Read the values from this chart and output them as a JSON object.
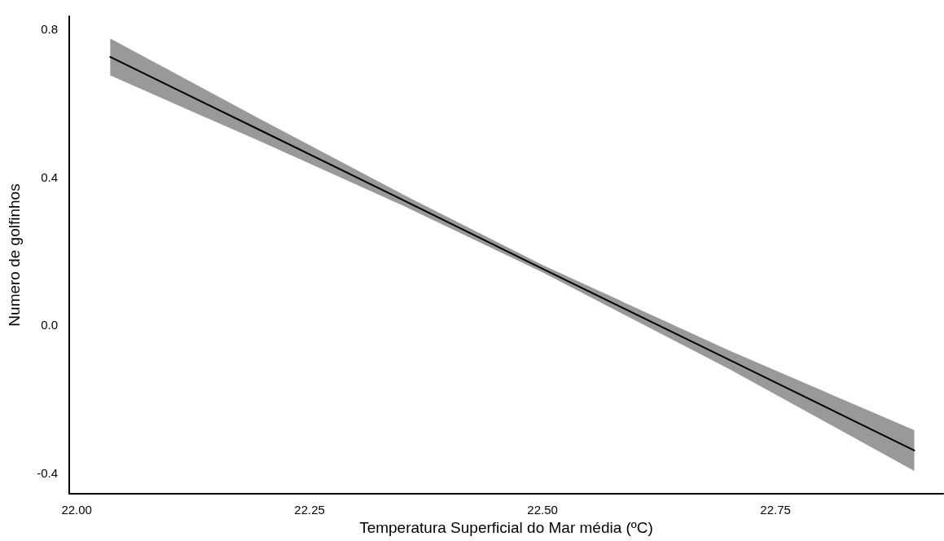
{
  "chart_data": {
    "type": "line",
    "xlabel": "Temperatura Superficial do Mar média (ºC)",
    "ylabel": "Numero de golfinhos",
    "x": [
      22.036,
      22.2,
      22.35,
      22.5,
      22.7,
      22.899
    ],
    "series": [
      {
        "color": "#000000",
        "values": [
          0.725,
          0.523,
          0.338,
          0.152,
          -0.094,
          -0.34
        ],
        "lower": [
          0.675,
          0.493,
          0.323,
          0.142,
          -0.119,
          -0.395
        ],
        "upper": [
          0.775,
          0.553,
          0.353,
          0.162,
          -0.069,
          -0.285
        ]
      }
    ],
    "xlim": [
      21.992,
      22.93
    ],
    "xticks": [
      {
        "value": 22,
        "label": "22.00"
      },
      22.25,
      {
        "value": 22.5,
        "label": "22.50"
      },
      22.75
    ],
    "ylim": [
      -0.457,
      0.835
    ],
    "yticks": [
      -0.4,
      {
        "value": 0,
        "label": "0.0"
      },
      0.4,
      0.8
    ],
    "grid": false,
    "marker": "none",
    "line_style": "solid"
  }
}
